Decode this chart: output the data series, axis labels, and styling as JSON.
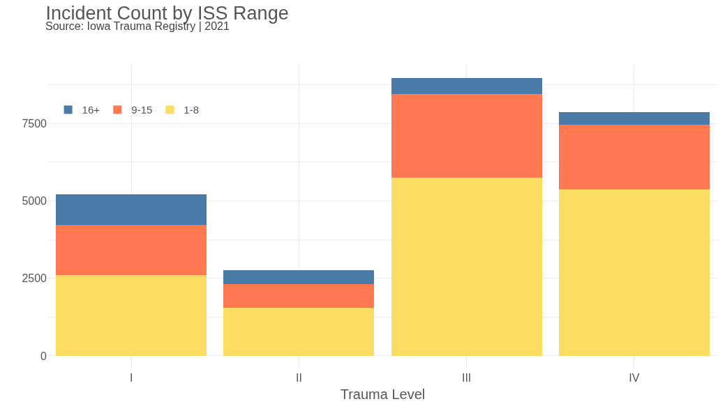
{
  "chart_data": {
    "type": "bar",
    "title": "Incident Count by ISS Range",
    "subtitle": "Source: Iowa Trauma Registry | 2021",
    "xlabel": "Trauma Level",
    "categories": [
      "I",
      "II",
      "III",
      "IV"
    ],
    "stacked": true,
    "series": [
      {
        "name": "1-8",
        "color": "#fddc63",
        "values": [
          2600,
          1550,
          5740,
          5360
        ]
      },
      {
        "name": "9-15",
        "color": "#ff7850",
        "values": [
          1620,
          760,
          2710,
          2090
        ]
      },
      {
        "name": "16+",
        "color": "#4a7aa8",
        "values": [
          1000,
          460,
          510,
          420
        ]
      }
    ],
    "ylim": [
      -450,
      9410
    ],
    "yticks": [
      0,
      {
        "value": 1250,
        "label": null
      },
      2500,
      {
        "value": 3750,
        "label": null
      },
      5000,
      {
        "value": 6250,
        "label": null
      },
      7500,
      {
        "value": 8750,
        "label": null
      }
    ],
    "grid": true,
    "legend": "top left"
  }
}
